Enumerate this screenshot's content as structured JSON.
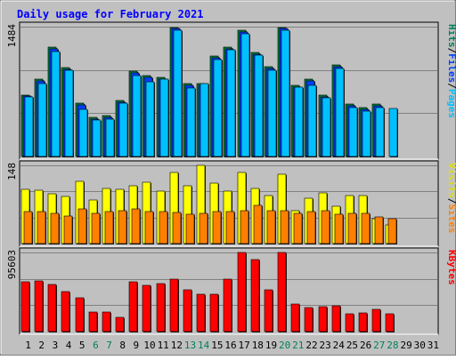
{
  "chart_data": {
    "type": "bar",
    "title": "Daily usage for February 2021",
    "categories": [
      "1",
      "2",
      "3",
      "4",
      "5",
      "6",
      "7",
      "8",
      "9",
      "10",
      "11",
      "12",
      "13",
      "14",
      "15",
      "16",
      "17",
      "18",
      "19",
      "20",
      "21",
      "22",
      "23",
      "24",
      "25",
      "26",
      "27",
      "28",
      "29",
      "30",
      "31"
    ],
    "weekend_days": [
      6,
      7,
      13,
      14,
      20,
      21,
      27,
      28
    ],
    "panels": [
      {
        "id": "top",
        "max_label": "1484",
        "ylim": [
          0,
          1484
        ],
        "legend": [
          {
            "label": "Hits",
            "color": "#00805c"
          },
          {
            "label": "/",
            "color": "#000000"
          },
          {
            "label": "Files",
            "color": "#0040ff"
          },
          {
            "label": "/",
            "color": "#000000"
          },
          {
            "label": "Pages",
            "color": "#00c0ff"
          }
        ],
        "series": [
          {
            "name": "Hits",
            "color": "#008040",
            "values": [
              700,
              880,
              1250,
              1020,
              610,
              450,
              470,
              640,
              980,
              920,
              900,
              1475,
              830,
              830,
              1150,
              1250,
              1440,
              1190,
              1030,
              1475,
              810,
              880,
              700,
              1050,
              600,
              560,
              600,
              0,
              0,
              0,
              0
            ]
          },
          {
            "name": "Files",
            "color": "#0040ff",
            "values": [
              690,
              860,
              1230,
              1000,
              590,
              430,
              450,
              620,
              960,
              900,
              880,
              1460,
              810,
              810,
              1130,
              1230,
              1420,
              1170,
              1010,
              1460,
              790,
              860,
              680,
              1030,
              580,
              540,
              580,
              0,
              0,
              0,
              0
            ]
          },
          {
            "name": "Pages",
            "color": "#00c0ff",
            "values": [
              680,
              830,
              1200,
              990,
              540,
              420,
              430,
              610,
              920,
              850,
              880,
              1440,
              780,
              830,
              1110,
              1220,
              1400,
              1160,
              990,
              1440,
              790,
              810,
              670,
              1010,
              560,
              520,
              560,
              550,
              0,
              0,
              0
            ]
          }
        ]
      },
      {
        "id": "middle",
        "max_label": "148",
        "ylim": [
          0,
          148
        ],
        "legend": [
          {
            "label": "Visits",
            "color": "#e0e000"
          },
          {
            "label": "/",
            "color": "#000000"
          },
          {
            "label": "Sites",
            "color": "#ff8000"
          }
        ],
        "series": [
          {
            "name": "Visits",
            "color": "#ffff00",
            "values": [
              103,
              101,
              95,
              89,
              118,
              82,
              104,
              103,
              109,
              116,
              100,
              135,
              110,
              148,
              114,
              99,
              134,
              105,
              91,
              131,
              63,
              86,
              96,
              71,
              91,
              91,
              47,
              36,
              0,
              0,
              0
            ]
          },
          {
            "name": "Sites",
            "color": "#ff8000",
            "values": [
              60,
              60,
              58,
              52,
              66,
              58,
              60,
              62,
              65,
              61,
              60,
              59,
              55,
              58,
              60,
              61,
              62,
              72,
              62,
              62,
              58,
              60,
              62,
              55,
              57,
              58,
              50,
              47,
              0,
              0,
              0
            ]
          }
        ]
      },
      {
        "id": "bottom",
        "max_label": "95603",
        "ylim": [
          0,
          95603
        ],
        "legend": [
          {
            "label": "KBytes",
            "color": "#ff0000"
          }
        ],
        "series": [
          {
            "name": "KBytes",
            "color": "#ff0000",
            "values": [
              60500,
              61500,
              56500,
              48500,
              40500,
              23500,
              24000,
              17500,
              60500,
              55500,
              58500,
              63500,
              50500,
              45500,
              45500,
              63500,
              95603,
              87000,
              51000,
              95603,
              33000,
              29000,
              30500,
              31000,
              22000,
              23000,
              27000,
              22000,
              0,
              0,
              0
            ]
          }
        ]
      }
    ]
  }
}
